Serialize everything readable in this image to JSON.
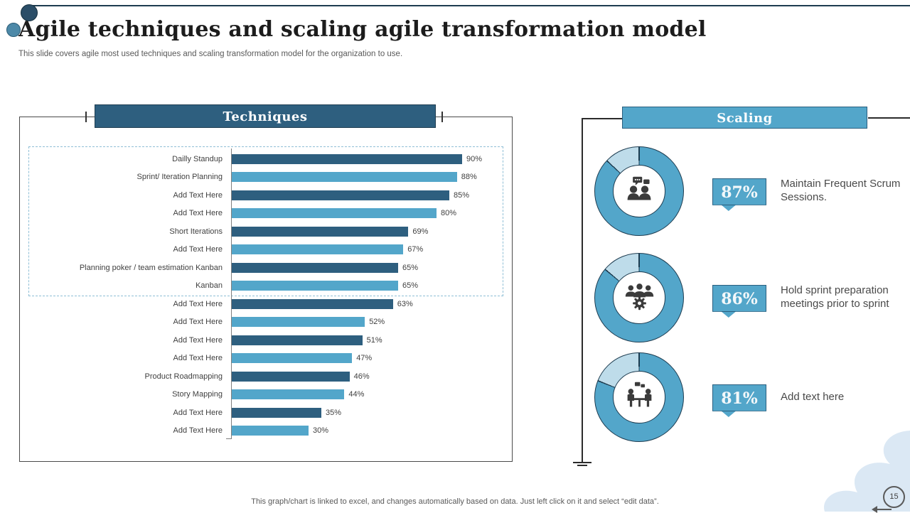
{
  "slide": {
    "title": "Agile techniques and scaling agile transformation model",
    "subtitle": "This slide covers agile most used techniques and scaling transformation model for the organization to use.",
    "footer": "This graph/chart is linked to excel, and changes automatically based on data. Just left click on it and select “edit data”.",
    "page_number": "15"
  },
  "colors": {
    "dark_teal": "#2e5f7f",
    "mid_blue": "#53a6ca",
    "pale_blue": "#bedcea",
    "outline": "#1e3c50",
    "blob": "#dbe8f4"
  },
  "techniques": {
    "header": "Techniques"
  },
  "scaling": {
    "header": "Scaling",
    "items": [
      {
        "value": 87,
        "label": "87%",
        "caption": "Maintain Frequent Scrum Sessions.",
        "icon": "scrum-discussion-icon"
      },
      {
        "value": 86,
        "label": "86%",
        "caption": "Hold sprint preparation meetings prior to sprint",
        "icon": "team-gear-icon"
      },
      {
        "value": 81,
        "label": "81%",
        "caption": "Add text here",
        "icon": "meeting-table-icon"
      }
    ]
  },
  "chart_data": [
    {
      "type": "bar",
      "orientation": "horizontal",
      "title": "Techniques",
      "categories": [
        "Dailly Standup",
        "Sprint/ Iteration Planning",
        "Add Text Here",
        "Add Text Here",
        "Short Iterations",
        "Add Text Here",
        "Planning poker / team estimation Kanban",
        "Kanban",
        "Add Text Here",
        "Add Text Here",
        "Add Text Here",
        "Add Text Here",
        "Product Roadmapping",
        "Story Mapping",
        "Add Text Here",
        "Add Text Here"
      ],
      "values": [
        90,
        88,
        85,
        80,
        69,
        67,
        65,
        65,
        63,
        52,
        51,
        47,
        46,
        44,
        35,
        30
      ],
      "value_suffix": "%",
      "xlim": [
        0,
        100
      ],
      "grid": false,
      "bar_colors_alternate": [
        "#2e5f7f",
        "#53a6ca"
      ]
    },
    {
      "type": "donut",
      "title": "Scaling",
      "series": [
        {
          "name": "Maintain Frequent Scrum Sessions.",
          "value": 87,
          "remainder": 13
        },
        {
          "name": "Hold sprint preparation meetings prior to sprint",
          "value": 86,
          "remainder": 14
        },
        {
          "name": "Add text here",
          "value": 81,
          "remainder": 19
        }
      ],
      "colors": {
        "main": "#53a6ca",
        "remainder": "#bedcea"
      }
    }
  ]
}
